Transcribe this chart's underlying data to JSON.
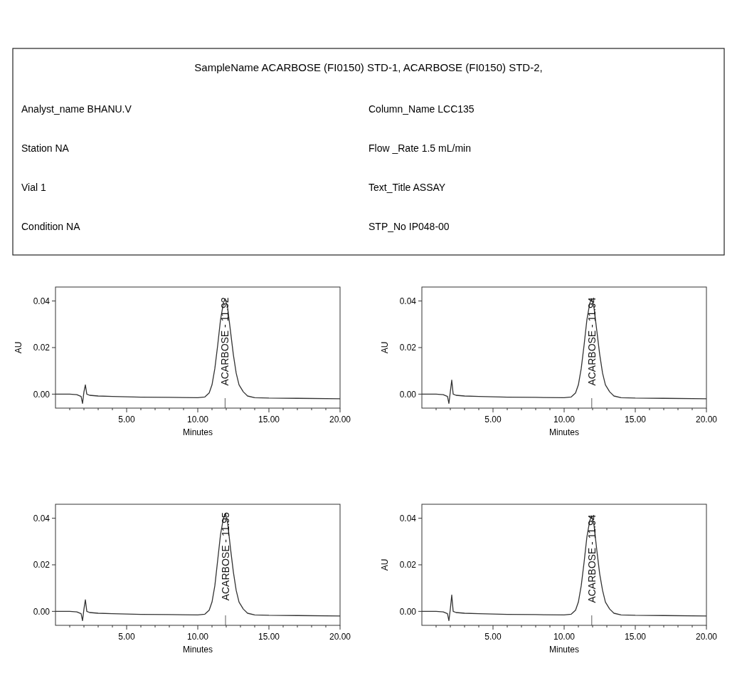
{
  "chart_data": [
    {
      "type": "other",
      "title": "SampleName ACARBOSE (FI0150) STD-1, ACARBOSE (FI0150) STD-2,",
      "annotations": [
        "Analyst_name BHANU.V",
        "Station NA",
        "Vial 1",
        "Condition NA",
        "Column_Name LCC135",
        "Flow _Rate 1.5 mL/min",
        "Text_Title ASSAY",
        "STP_No IP048-00"
      ]
    },
    {
      "type": "line",
      "xlabel": "Minutes",
      "ylabel": "AU",
      "xlim": [
        0,
        20
      ],
      "ylim": [
        -0.006,
        0.046
      ],
      "xticks": [
        {
          "value": 1,
          "label": null
        },
        {
          "value": 2,
          "label": null
        },
        {
          "value": 3,
          "label": null
        },
        {
          "value": 4,
          "label": null
        },
        {
          "value": 5,
          "label": "5.00"
        },
        {
          "value": 6,
          "label": null
        },
        {
          "value": 7,
          "label": null
        },
        {
          "value": 8,
          "label": null
        },
        {
          "value": 9,
          "label": null
        },
        {
          "value": 10,
          "label": "10.00"
        },
        {
          "value": 11,
          "label": null
        },
        {
          "value": 12,
          "label": null
        },
        {
          "value": 13,
          "label": null
        },
        {
          "value": 14,
          "label": null
        },
        {
          "value": 15,
          "label": "15.00"
        },
        {
          "value": 16,
          "label": null
        },
        {
          "value": 17,
          "label": null
        },
        {
          "value": 18,
          "label": null
        },
        {
          "value": 19,
          "label": null
        },
        {
          "value": 20,
          "label": "20.00"
        }
      ],
      "yticks": [
        {
          "value": 0,
          "label": "0.00"
        },
        {
          "value": 0.02,
          "label": "0.02"
        },
        {
          "value": 0.04,
          "label": "0.04"
        }
      ],
      "annotations": [
        {
          "text": "ACARBOSE - 11.92",
          "x": 11.92,
          "y": 0.041
        }
      ],
      "series": [
        {
          "color": "#333333",
          "x": [
            0,
            1,
            1.5,
            1.8,
            1.9,
            2.0,
            2.1,
            2.2,
            2.4,
            3,
            4,
            6,
            8,
            10,
            10.5,
            10.8,
            11.0,
            11.2,
            11.4,
            11.6,
            11.8,
            11.92,
            12.1,
            12.3,
            12.5,
            12.7,
            12.9,
            13.2,
            13.5,
            14,
            15,
            17,
            20
          ],
          "values": [
            0,
            0,
            -0.0002,
            -0.001,
            -0.004,
            0.001,
            0.004,
            0,
            -0.0005,
            -0.0008,
            -0.001,
            -0.0013,
            -0.0014,
            -0.0015,
            -0.0012,
            0.0005,
            0.004,
            0.011,
            0.021,
            0.032,
            0.039,
            0.041,
            0.037,
            0.027,
            0.017,
            0.009,
            0.004,
            0.001,
            -0.0008,
            -0.0015,
            -0.0017,
            -0.0018,
            -0.002
          ]
        }
      ]
    },
    {
      "type": "line",
      "xlabel": "Minutes",
      "ylabel": "AU",
      "xlim": [
        0,
        20
      ],
      "ylim": [
        -0.006,
        0.046
      ],
      "xticks": [
        {
          "value": 1,
          "label": null
        },
        {
          "value": 2,
          "label": null
        },
        {
          "value": 3,
          "label": null
        },
        {
          "value": 4,
          "label": null
        },
        {
          "value": 5,
          "label": "5.00"
        },
        {
          "value": 6,
          "label": null
        },
        {
          "value": 7,
          "label": null
        },
        {
          "value": 8,
          "label": null
        },
        {
          "value": 9,
          "label": null
        },
        {
          "value": 10,
          "label": "10.00"
        },
        {
          "value": 11,
          "label": null
        },
        {
          "value": 12,
          "label": null
        },
        {
          "value": 13,
          "label": null
        },
        {
          "value": 14,
          "label": null
        },
        {
          "value": 15,
          "label": "15.00"
        },
        {
          "value": 16,
          "label": null
        },
        {
          "value": 17,
          "label": null
        },
        {
          "value": 18,
          "label": null
        },
        {
          "value": 19,
          "label": null
        },
        {
          "value": 20,
          "label": "20.00"
        }
      ],
      "yticks": [
        {
          "value": 0,
          "label": "0.00"
        },
        {
          "value": 0.02,
          "label": "0.02"
        },
        {
          "value": 0.04,
          "label": "0.04"
        }
      ],
      "annotations": [
        {
          "text": "ACARBOSE - 11.94",
          "x": 11.94,
          "y": 0.041
        }
      ],
      "series": [
        {
          "color": "#333333",
          "x": [
            0,
            1,
            1.5,
            1.8,
            1.9,
            2.0,
            2.1,
            2.2,
            2.4,
            3,
            4,
            6,
            8,
            10,
            10.5,
            10.8,
            11.0,
            11.2,
            11.4,
            11.6,
            11.8,
            11.94,
            12.1,
            12.3,
            12.5,
            12.7,
            12.9,
            13.2,
            13.5,
            14,
            15,
            17,
            20
          ],
          "values": [
            0,
            0,
            -0.0002,
            -0.001,
            -0.004,
            0.001,
            0.006,
            0,
            -0.0005,
            -0.0008,
            -0.001,
            -0.0013,
            -0.0014,
            -0.0015,
            -0.0012,
            0.0005,
            0.004,
            0.011,
            0.021,
            0.032,
            0.039,
            0.041,
            0.037,
            0.027,
            0.017,
            0.009,
            0.004,
            0.001,
            -0.0008,
            -0.0015,
            -0.0017,
            -0.0018,
            -0.002
          ]
        }
      ]
    },
    {
      "type": "line",
      "xlabel": "Minutes",
      "xlim": [
        0,
        20
      ],
      "ylim": [
        -0.006,
        0.046
      ],
      "xticks": [
        {
          "value": 1,
          "label": null
        },
        {
          "value": 2,
          "label": null
        },
        {
          "value": 3,
          "label": null
        },
        {
          "value": 4,
          "label": null
        },
        {
          "value": 5,
          "label": "5.00"
        },
        {
          "value": 6,
          "label": null
        },
        {
          "value": 7,
          "label": null
        },
        {
          "value": 8,
          "label": null
        },
        {
          "value": 9,
          "label": null
        },
        {
          "value": 10,
          "label": "10.00"
        },
        {
          "value": 11,
          "label": null
        },
        {
          "value": 12,
          "label": null
        },
        {
          "value": 13,
          "label": null
        },
        {
          "value": 14,
          "label": null
        },
        {
          "value": 15,
          "label": "15.00"
        },
        {
          "value": 16,
          "label": null
        },
        {
          "value": 17,
          "label": null
        },
        {
          "value": 18,
          "label": null
        },
        {
          "value": 19,
          "label": null
        },
        {
          "value": 20,
          "label": "20.00"
        }
      ],
      "yticks": [
        {
          "value": 0,
          "label": "0.00"
        },
        {
          "value": 0.02,
          "label": "0.02"
        },
        {
          "value": 0.04,
          "label": "0.04"
        }
      ],
      "annotations": [
        {
          "text": "ACARBOSE - 11.95",
          "x": 11.95,
          "y": 0.042
        }
      ],
      "series": [
        {
          "color": "#333333",
          "x": [
            0,
            1,
            1.5,
            1.8,
            1.9,
            2.0,
            2.1,
            2.2,
            2.4,
            3,
            4,
            6,
            8,
            10,
            10.5,
            10.8,
            11.0,
            11.2,
            11.4,
            11.6,
            11.8,
            11.95,
            12.1,
            12.3,
            12.5,
            12.7,
            12.9,
            13.2,
            13.5,
            14,
            15,
            17,
            20
          ],
          "values": [
            0,
            0,
            -0.0002,
            -0.001,
            -0.004,
            0.001,
            0.005,
            0,
            -0.0005,
            -0.0008,
            -0.001,
            -0.0013,
            -0.0014,
            -0.0015,
            -0.0012,
            0.0005,
            0.004,
            0.011,
            0.022,
            0.033,
            0.04,
            0.042,
            0.038,
            0.027,
            0.017,
            0.009,
            0.004,
            0.001,
            -0.0008,
            -0.0015,
            -0.0017,
            -0.0018,
            -0.002
          ]
        }
      ]
    },
    {
      "type": "line",
      "xlabel": "Minutes",
      "ylabel": "AU",
      "xlim": [
        0,
        20
      ],
      "ylim": [
        -0.006,
        0.046
      ],
      "xticks": [
        {
          "value": 1,
          "label": null
        },
        {
          "value": 2,
          "label": null
        },
        {
          "value": 3,
          "label": null
        },
        {
          "value": 4,
          "label": null
        },
        {
          "value": 5,
          "label": "5.00"
        },
        {
          "value": 6,
          "label": null
        },
        {
          "value": 7,
          "label": null
        },
        {
          "value": 8,
          "label": null
        },
        {
          "value": 9,
          "label": null
        },
        {
          "value": 10,
          "label": "10.00"
        },
        {
          "value": 11,
          "label": null
        },
        {
          "value": 12,
          "label": null
        },
        {
          "value": 13,
          "label": null
        },
        {
          "value": 14,
          "label": null
        },
        {
          "value": 15,
          "label": "15.00"
        },
        {
          "value": 16,
          "label": null
        },
        {
          "value": 17,
          "label": null
        },
        {
          "value": 18,
          "label": null
        },
        {
          "value": 19,
          "label": null
        },
        {
          "value": 20,
          "label": "20.00"
        }
      ],
      "yticks": [
        {
          "value": 0,
          "label": "0.00"
        },
        {
          "value": 0.02,
          "label": "0.02"
        },
        {
          "value": 0.04,
          "label": "0.04"
        }
      ],
      "annotations": [
        {
          "text": "ACARBOSE - 11.94",
          "x": 11.94,
          "y": 0.041
        }
      ],
      "series": [
        {
          "color": "#333333",
          "x": [
            0,
            1,
            1.5,
            1.8,
            1.9,
            2.0,
            2.1,
            2.2,
            2.4,
            3,
            4,
            6,
            8,
            10,
            10.5,
            10.8,
            11.0,
            11.2,
            11.4,
            11.6,
            11.8,
            11.94,
            12.1,
            12.3,
            12.5,
            12.7,
            12.9,
            13.2,
            13.5,
            14,
            15,
            17,
            20
          ],
          "values": [
            0,
            0,
            -0.0002,
            -0.001,
            -0.004,
            0.001,
            0.007,
            0,
            -0.0005,
            -0.0008,
            -0.001,
            -0.0013,
            -0.0014,
            -0.0015,
            -0.0012,
            0.0005,
            0.004,
            0.011,
            0.021,
            0.032,
            0.039,
            0.041,
            0.037,
            0.026,
            0.016,
            0.009,
            0.004,
            0.001,
            -0.0008,
            -0.0015,
            -0.0017,
            -0.0018,
            -0.002
          ]
        }
      ]
    }
  ]
}
